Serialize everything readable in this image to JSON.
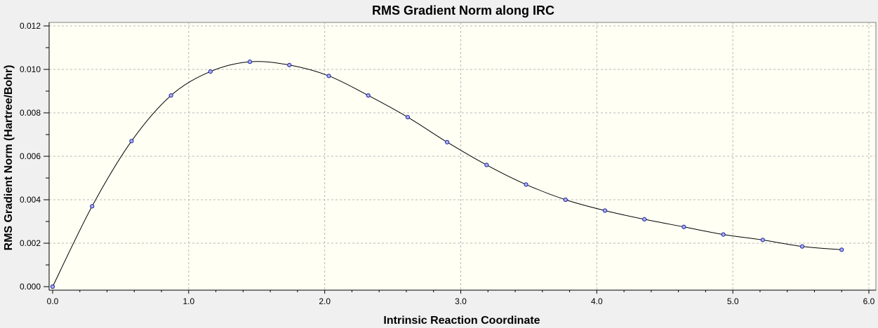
{
  "chart_data": {
    "type": "line",
    "title": "RMS Gradient Norm along IRC",
    "xlabel": "Intrinsic Reaction Coordinate",
    "ylabel": "RMS Gradient Norm (Hartree/Bohr)",
    "xlim": [
      0.0,
      6.0
    ],
    "ylim": [
      0.0,
      0.012
    ],
    "x_ticks": [
      "0.0",
      "1.0",
      "2.0",
      "3.0",
      "4.0",
      "5.0",
      "6.0"
    ],
    "y_ticks": [
      "0.000",
      "0.002",
      "0.004",
      "0.006",
      "0.008",
      "0.010",
      "0.012"
    ],
    "grid": true,
    "marker": "circle",
    "colors": {
      "plot_background": "#fffff4",
      "line": "#000000",
      "marker_fill": "#a8b2f0",
      "marker_stroke": "#2020a0",
      "grid": "#b8b8b8"
    },
    "series": [
      {
        "x": [
          0.0,
          0.29,
          0.58,
          0.87,
          1.16,
          1.45,
          1.74,
          2.03,
          2.32,
          2.61,
          2.9,
          3.19,
          3.48,
          3.77,
          4.06,
          4.35,
          4.64,
          4.93,
          5.22,
          5.51,
          5.8
        ],
        "y": [
          0.0,
          0.0037,
          0.0067,
          0.0088,
          0.0099,
          0.01035,
          0.0102,
          0.0097,
          0.0088,
          0.0078,
          0.00665,
          0.0056,
          0.0047,
          0.004,
          0.0035,
          0.0031,
          0.00275,
          0.0024,
          0.00215,
          0.00185,
          0.0017
        ]
      }
    ]
  }
}
